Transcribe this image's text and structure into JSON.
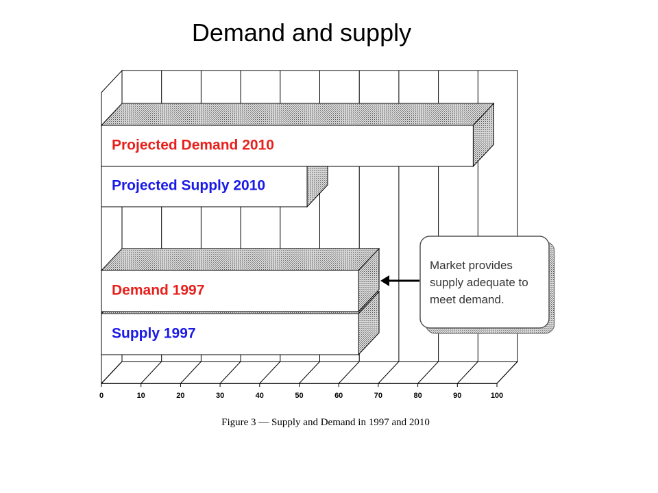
{
  "chart_data": {
    "type": "bar3d",
    "orientation": "horizontal",
    "title": "Demand and supply",
    "caption": "Figure 3 — Supply and Demand in 1997 and 2010",
    "categories": [
      "Projected Demand 2010",
      "Projected Supply 2010",
      "Demand 1997",
      "Supply 1997"
    ],
    "values": [
      94,
      52,
      65,
      65
    ],
    "label_colors": [
      "#e8201c",
      "#1a1ae6",
      "#e8201c",
      "#1a1ae6"
    ],
    "xlim": [
      0,
      100
    ],
    "xticks": [
      0,
      10,
      20,
      30,
      40,
      50,
      60,
      70,
      80,
      90,
      100
    ],
    "grid": true,
    "annotation": [
      "Market provides",
      "supply adequate to",
      "meet demand."
    ]
  }
}
